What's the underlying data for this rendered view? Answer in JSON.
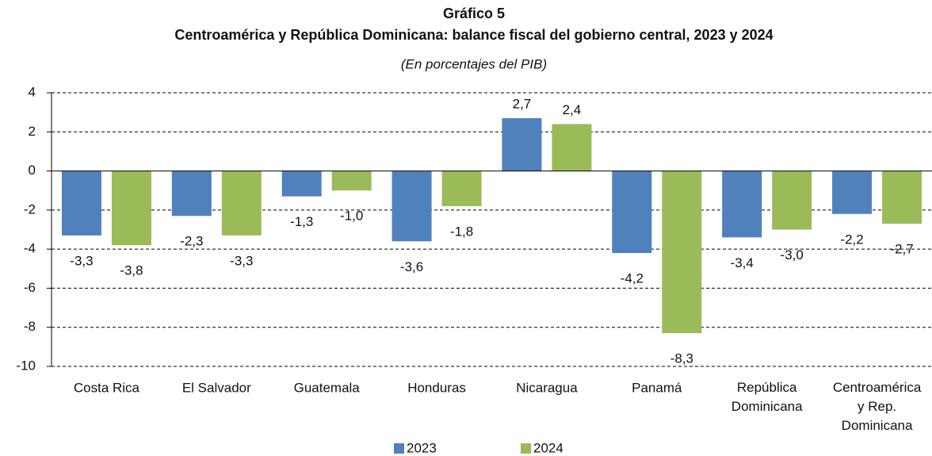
{
  "chart_data": {
    "type": "bar",
    "title": "Gráfico 5",
    "subtitle": "Centroamérica y República Dominicana: balance fiscal del gobierno central, 2023 y 2024",
    "note": "(En porcentajes del PIB)",
    "categories": [
      "Costa Rica",
      "El Salvador",
      "Guatemala",
      "Honduras",
      "Nicaragua",
      "Panamá",
      "República\nDominicana",
      "Centroamérica\ny Rep.\nDominicana"
    ],
    "series": [
      {
        "name": "2023",
        "color": "#4f81bd",
        "values": [
          -3.3,
          -2.3,
          -1.3,
          -3.6,
          2.7,
          -4.2,
          -3.4,
          -2.2
        ],
        "value_labels": [
          "-3,3",
          "-2,3",
          "-1,3",
          "-3,6",
          "2,7",
          "-4,2",
          "-3,4",
          "-2,2"
        ]
      },
      {
        "name": "2024",
        "color": "#9bbb59",
        "values": [
          -3.8,
          -3.3,
          -1.0,
          -1.8,
          2.4,
          -8.3,
          -3.0,
          -2.7
        ],
        "value_labels": [
          "-3,8",
          "-3,3",
          "-1,0",
          "-1,8",
          "2,4",
          "-8,3",
          "-3,0",
          "-2,7"
        ]
      }
    ],
    "ylim": [
      -10,
      4
    ],
    "yticks": [
      -10,
      -8,
      -6,
      -4,
      -2,
      0,
      2,
      4
    ],
    "grid": true
  }
}
